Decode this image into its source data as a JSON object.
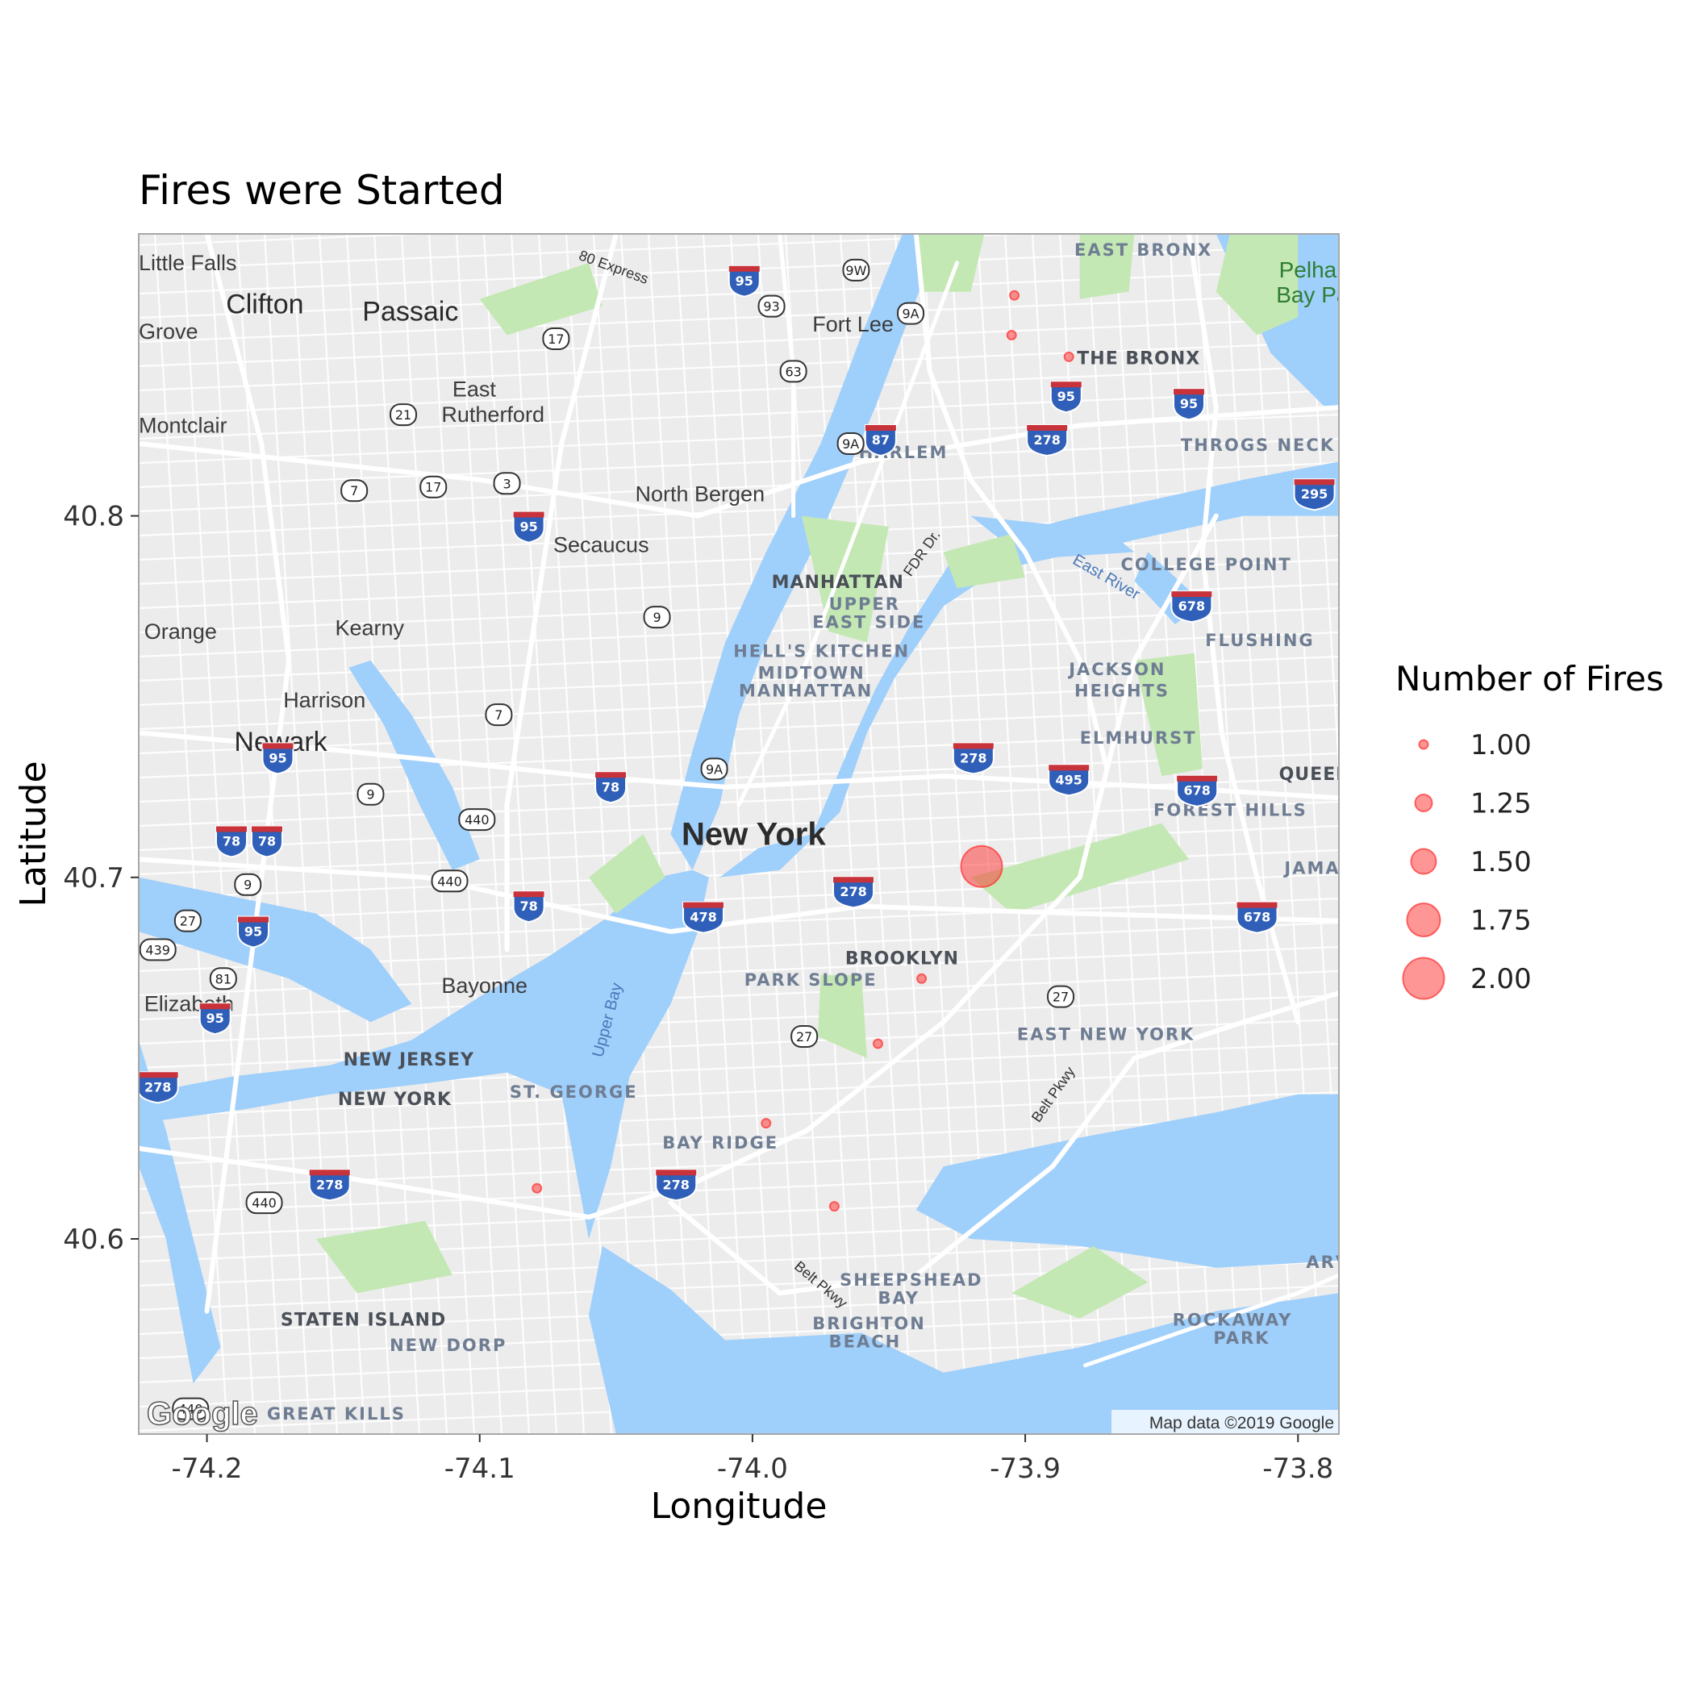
{
  "chart_data": {
    "type": "scatter",
    "title": "Fires were Started",
    "xlabel": "Longitude",
    "ylabel": "Latitude",
    "xlim": [
      -74.225,
      -73.785
    ],
    "ylim": [
      40.546,
      40.878
    ],
    "x_ticks": [
      -74.2,
      -74.1,
      -74.0,
      -73.9,
      -73.8
    ],
    "x_tick_labels": [
      "-74.2",
      "-74.1",
      "-74.0",
      "-73.9",
      "-73.8"
    ],
    "y_ticks": [
      40.6,
      40.7,
      40.8
    ],
    "y_tick_labels": [
      "40.6",
      "40.7",
      "40.8"
    ],
    "grid": false,
    "point_color": "#ff2d2d",
    "legend": {
      "title": "Number of Fires",
      "placement": "right",
      "entries": [
        {
          "label": "1.00",
          "value": 1.0
        },
        {
          "label": "1.25",
          "value": 1.25
        },
        {
          "label": "1.50",
          "value": 1.5
        },
        {
          "label": "1.75",
          "value": 1.75
        },
        {
          "label": "2.00",
          "value": 2.0
        }
      ]
    },
    "points": [
      {
        "lon": -73.904,
        "lat": 40.861,
        "fires": 1
      },
      {
        "lon": -73.905,
        "lat": 40.85,
        "fires": 1
      },
      {
        "lon": -73.884,
        "lat": 40.844,
        "fires": 1
      },
      {
        "lon": -73.916,
        "lat": 40.703,
        "fires": 2
      },
      {
        "lon": -73.938,
        "lat": 40.672,
        "fires": 1
      },
      {
        "lon": -73.954,
        "lat": 40.654,
        "fires": 1
      },
      {
        "lon": -73.995,
        "lat": 40.632,
        "fires": 1
      },
      {
        "lon": -74.079,
        "lat": 40.614,
        "fires": 1
      },
      {
        "lon": -73.97,
        "lat": 40.609,
        "fires": 1
      }
    ]
  },
  "basemap": {
    "credit": "Map data ©2019 Google",
    "logo": "Google",
    "colors": {
      "land": "#ececec",
      "water": "#9fcffb",
      "park": "#c4e8b4",
      "road": "#ffffff"
    },
    "places": [
      {
        "text": "Little Falls",
        "lon": -74.225,
        "lat": 40.868,
        "style": "place"
      },
      {
        "text": "Clifton",
        "lon": -74.193,
        "lat": 40.856,
        "style": "place-lg"
      },
      {
        "text": "Passaic",
        "lon": -74.143,
        "lat": 40.854,
        "style": "place-lg"
      },
      {
        "text": "Grove",
        "lon": -74.225,
        "lat": 40.849,
        "style": "place"
      },
      {
        "text": "Montclair",
        "lon": -74.225,
        "lat": 40.823,
        "style": "place"
      },
      {
        "text": "East",
        "lon": -74.11,
        "lat": 40.833,
        "style": "place"
      },
      {
        "text": "Rutherford",
        "lon": -74.114,
        "lat": 40.826,
        "style": "place"
      },
      {
        "text": "Fort Lee",
        "lon": -73.978,
        "lat": 40.851,
        "style": "place"
      },
      {
        "text": "North Bergen",
        "lon": -74.043,
        "lat": 40.804,
        "style": "place"
      },
      {
        "text": "Secaucus",
        "lon": -74.073,
        "lat": 40.79,
        "style": "place"
      },
      {
        "text": "Orange",
        "lon": -74.223,
        "lat": 40.766,
        "style": "place"
      },
      {
        "text": "Kearny",
        "lon": -74.153,
        "lat": 40.767,
        "style": "place"
      },
      {
        "text": "Harrison",
        "lon": -74.172,
        "lat": 40.747,
        "style": "place"
      },
      {
        "text": "Newark",
        "lon": -74.19,
        "lat": 40.735,
        "style": "place-lg"
      },
      {
        "text": "Bayonne",
        "lon": -74.114,
        "lat": 40.668,
        "style": "place"
      },
      {
        "text": "Elizabeth",
        "lon": -74.223,
        "lat": 40.663,
        "style": "place"
      },
      {
        "text": "New York",
        "lon": -74.026,
        "lat": 40.709,
        "style": "city"
      },
      {
        "text": "Pelham",
        "lon": -73.807,
        "lat": 40.866,
        "style": "park-label"
      },
      {
        "text": "Bay Park",
        "lon": -73.808,
        "lat": 40.859,
        "style": "park-label"
      }
    ],
    "neighborhoods": [
      {
        "text": "EAST BRONX",
        "lon": -73.882,
        "lat": 40.872,
        "style": "hood"
      },
      {
        "text": "THE BRONX",
        "lon": -73.881,
        "lat": 40.842,
        "style": "boro"
      },
      {
        "text": "HARLEM",
        "lon": -73.961,
        "lat": 40.816,
        "style": "hood"
      },
      {
        "text": "THROGS NECK",
        "lon": -73.843,
        "lat": 40.818,
        "style": "hood"
      },
      {
        "text": "MANHATTAN",
        "lon": -73.993,
        "lat": 40.78,
        "style": "boro"
      },
      {
        "text": "UPPER",
        "lon": -73.972,
        "lat": 40.774,
        "style": "hood"
      },
      {
        "text": "EAST SIDE",
        "lon": -73.978,
        "lat": 40.769,
        "style": "hood"
      },
      {
        "text": "COLLEGE POINT",
        "lon": -73.865,
        "lat": 40.785,
        "style": "hood"
      },
      {
        "text": "FLUSHING",
        "lon": -73.834,
        "lat": 40.764,
        "style": "hood"
      },
      {
        "text": "HELL'S KITCHEN",
        "lon": -74.007,
        "lat": 40.761,
        "style": "hood"
      },
      {
        "text": "MIDTOWN",
        "lon": -73.998,
        "lat": 40.755,
        "style": "hood"
      },
      {
        "text": "MANHATTAN",
        "lon": -74.005,
        "lat": 40.75,
        "style": "hood"
      },
      {
        "text": "JACKSON",
        "lon": -73.884,
        "lat": 40.756,
        "style": "hood"
      },
      {
        "text": "HEIGHTS",
        "lon": -73.882,
        "lat": 40.75,
        "style": "hood"
      },
      {
        "text": "ELMHURST",
        "lon": -73.88,
        "lat": 40.737,
        "style": "hood"
      },
      {
        "text": "FOREST HILLS",
        "lon": -73.853,
        "lat": 40.717,
        "style": "hood"
      },
      {
        "text": "QUEEN",
        "lon": -73.807,
        "lat": 40.727,
        "style": "boro"
      },
      {
        "text": "JAMA",
        "lon": -73.805,
        "lat": 40.701,
        "style": "hood"
      },
      {
        "text": "BROOKLYN",
        "lon": -73.966,
        "lat": 40.676,
        "style": "boro"
      },
      {
        "text": "PARK SLOPE",
        "lon": -74.003,
        "lat": 40.67,
        "style": "hood"
      },
      {
        "text": "EAST NEW YORK",
        "lon": -73.903,
        "lat": 40.655,
        "style": "hood"
      },
      {
        "text": "NEW JERSEY",
        "lon": -74.15,
        "lat": 40.648,
        "style": "boro"
      },
      {
        "text": "ST. GEORGE",
        "lon": -74.089,
        "lat": 40.639,
        "style": "hood"
      },
      {
        "text": "NEW YORK",
        "lon": -74.152,
        "lat": 40.637,
        "style": "boro"
      },
      {
        "text": "BAY RIDGE",
        "lon": -74.033,
        "lat": 40.625,
        "style": "hood"
      },
      {
        "text": "SHEEPSHEAD",
        "lon": -73.968,
        "lat": 40.587,
        "style": "hood"
      },
      {
        "text": "BAY",
        "lon": -73.954,
        "lat": 40.582,
        "style": "hood"
      },
      {
        "text": "ARVERN",
        "lon": -73.797,
        "lat": 40.592,
        "style": "hood"
      },
      {
        "text": "ROCKAWAY",
        "lon": -73.846,
        "lat": 40.576,
        "style": "hood"
      },
      {
        "text": "PARK",
        "lon": -73.831,
        "lat": 40.571,
        "style": "hood"
      },
      {
        "text": "BRIGHTON",
        "lon": -73.978,
        "lat": 40.575,
        "style": "hood"
      },
      {
        "text": "BEACH",
        "lon": -73.972,
        "lat": 40.57,
        "style": "hood"
      },
      {
        "text": "STATEN ISLAND",
        "lon": -74.173,
        "lat": 40.576,
        "style": "boro"
      },
      {
        "text": "NEW DORP",
        "lon": -74.133,
        "lat": 40.569,
        "style": "hood"
      },
      {
        "text": "GREAT KILLS",
        "lon": -74.178,
        "lat": 40.55,
        "style": "hood"
      }
    ],
    "water_labels": [
      {
        "text": "East River",
        "lon": -73.883,
        "lat": 40.787,
        "rotate": 30
      },
      {
        "text": "Upper Bay",
        "lon": -74.055,
        "lat": 40.65,
        "rotate": -75
      }
    ],
    "road_labels": [
      {
        "text": "80 Express",
        "lon": -74.064,
        "lat": 40.871,
        "rotate": 20
      },
      {
        "text": "FDR Dr.",
        "lon": -73.942,
        "lat": 40.783,
        "rotate": -55
      },
      {
        "text": "Belt Pkwy",
        "lon": -73.895,
        "lat": 40.632,
        "rotate": -55
      },
      {
        "text": "Belt Pkwy",
        "lon": -73.985,
        "lat": 40.592,
        "rotate": 40
      }
    ],
    "interstates": [
      {
        "num": "95",
        "lon": -74.003,
        "lat": 40.866
      },
      {
        "num": "87",
        "lon": -73.953,
        "lat": 40.822
      },
      {
        "num": "95",
        "lon": -73.885,
        "lat": 40.834
      },
      {
        "num": "95",
        "lon": -73.84,
        "lat": 40.832
      },
      {
        "num": "278",
        "lon": -73.892,
        "lat": 40.822
      },
      {
        "num": "295",
        "lon": -73.794,
        "lat": 40.807
      },
      {
        "num": "95",
        "lon": -74.082,
        "lat": 40.798
      },
      {
        "num": "678",
        "lon": -73.839,
        "lat": 40.776
      },
      {
        "num": "278",
        "lon": -73.919,
        "lat": 40.734
      },
      {
        "num": "495",
        "lon": -73.884,
        "lat": 40.728
      },
      {
        "num": "678",
        "lon": -73.837,
        "lat": 40.725
      },
      {
        "num": "95",
        "lon": -74.174,
        "lat": 40.734
      },
      {
        "num": "78",
        "lon": -74.052,
        "lat": 40.726
      },
      {
        "num": "78",
        "lon": -74.191,
        "lat": 40.711
      },
      {
        "num": "78",
        "lon": -74.178,
        "lat": 40.711
      },
      {
        "num": "278",
        "lon": -73.963,
        "lat": 40.697
      },
      {
        "num": "78",
        "lon": -74.082,
        "lat": 40.693
      },
      {
        "num": "478",
        "lon": -74.018,
        "lat": 40.69
      },
      {
        "num": "678",
        "lon": -73.815,
        "lat": 40.69
      },
      {
        "num": "95",
        "lon": -74.183,
        "lat": 40.686
      },
      {
        "num": "95",
        "lon": -74.197,
        "lat": 40.662
      },
      {
        "num": "278",
        "lon": -74.218,
        "lat": 40.643
      },
      {
        "num": "278",
        "lon": -74.155,
        "lat": 40.616
      },
      {
        "num": "278",
        "lon": -74.028,
        "lat": 40.616
      }
    ],
    "routes": [
      {
        "num": "9W",
        "lon": -73.962,
        "lat": 40.868
      },
      {
        "num": "93",
        "lon": -73.993,
        "lat": 40.858
      },
      {
        "num": "9A",
        "lon": -73.942,
        "lat": 40.856
      },
      {
        "num": "17",
        "lon": -74.072,
        "lat": 40.849
      },
      {
        "num": "63",
        "lon": -73.985,
        "lat": 40.84
      },
      {
        "num": "21",
        "lon": -74.128,
        "lat": 40.828
      },
      {
        "num": "9A",
        "lon": -73.964,
        "lat": 40.82
      },
      {
        "num": "3",
        "lon": -74.09,
        "lat": 40.809
      },
      {
        "num": "7",
        "lon": -74.146,
        "lat": 40.807
      },
      {
        "num": "17",
        "lon": -74.117,
        "lat": 40.808
      },
      {
        "num": "9",
        "lon": -74.035,
        "lat": 40.772
      },
      {
        "num": "7",
        "lon": -74.093,
        "lat": 40.745
      },
      {
        "num": "9A",
        "lon": -74.014,
        "lat": 40.73
      },
      {
        "num": "9",
        "lon": -74.14,
        "lat": 40.723
      },
      {
        "num": "440",
        "lon": -74.101,
        "lat": 40.716
      },
      {
        "num": "440",
        "lon": -74.111,
        "lat": 40.699
      },
      {
        "num": "9",
        "lon": -74.185,
        "lat": 40.698
      },
      {
        "num": "27",
        "lon": -74.207,
        "lat": 40.688
      },
      {
        "num": "439",
        "lon": -74.218,
        "lat": 40.68
      },
      {
        "num": "81",
        "lon": -74.194,
        "lat": 40.672
      },
      {
        "num": "27",
        "lon": -73.887,
        "lat": 40.667
      },
      {
        "num": "27",
        "lon": -73.981,
        "lat": 40.656
      },
      {
        "num": "440",
        "lon": -74.179,
        "lat": 40.61
      },
      {
        "num": "440",
        "lon": -74.206,
        "lat": 40.553
      }
    ]
  }
}
